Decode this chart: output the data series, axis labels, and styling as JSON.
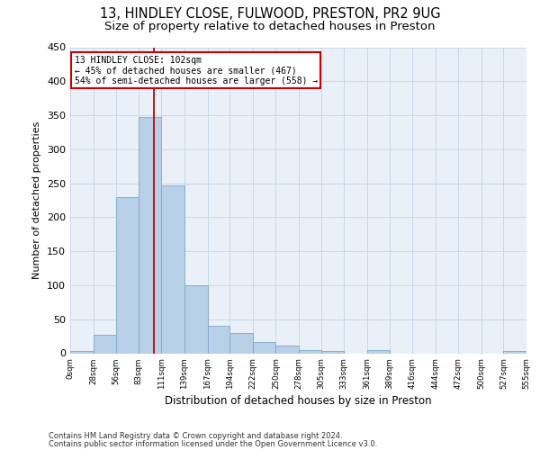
{
  "title": "13, HINDLEY CLOSE, FULWOOD, PRESTON, PR2 9UG",
  "subtitle": "Size of property relative to detached houses in Preston",
  "xlabel": "Distribution of detached houses by size in Preston",
  "ylabel": "Number of detached properties",
  "footnote1": "Contains HM Land Registry data © Crown copyright and database right 2024.",
  "footnote2": "Contains public sector information licensed under the Open Government Licence v3.0.",
  "bar_edges": [
    0,
    28,
    56,
    83,
    111,
    139,
    167,
    194,
    222,
    250,
    278,
    305,
    333,
    361,
    389,
    416,
    444,
    472,
    500,
    527,
    555
  ],
  "bar_heights": [
    3,
    27,
    229,
    347,
    247,
    100,
    41,
    30,
    16,
    11,
    4,
    3,
    0,
    4,
    0,
    0,
    0,
    0,
    0,
    3
  ],
  "bar_color": "#b8d0e8",
  "bar_edge_color": "#7aa8cc",
  "vline_x": 102,
  "vline_color": "#cc0000",
  "annotation_line1": "13 HINDLEY CLOSE: 102sqm",
  "annotation_line2": "← 45% of detached houses are smaller (467)",
  "annotation_line3": "54% of semi-detached houses are larger (558) →",
  "annotation_box_color": "#cc0000",
  "ylim": [
    0,
    450
  ],
  "yticks": [
    0,
    50,
    100,
    150,
    200,
    250,
    300,
    350,
    400,
    450
  ],
  "xtick_labels": [
    "0sqm",
    "28sqm",
    "56sqm",
    "83sqm",
    "111sqm",
    "139sqm",
    "167sqm",
    "194sqm",
    "222sqm",
    "250sqm",
    "278sqm",
    "305sqm",
    "333sqm",
    "361sqm",
    "389sqm",
    "416sqm",
    "444sqm",
    "472sqm",
    "500sqm",
    "527sqm",
    "555sqm"
  ],
  "grid_color": "#c8d8e8",
  "bg_color": "#eaf0f8",
  "title_fontsize": 10.5,
  "subtitle_fontsize": 9.5
}
